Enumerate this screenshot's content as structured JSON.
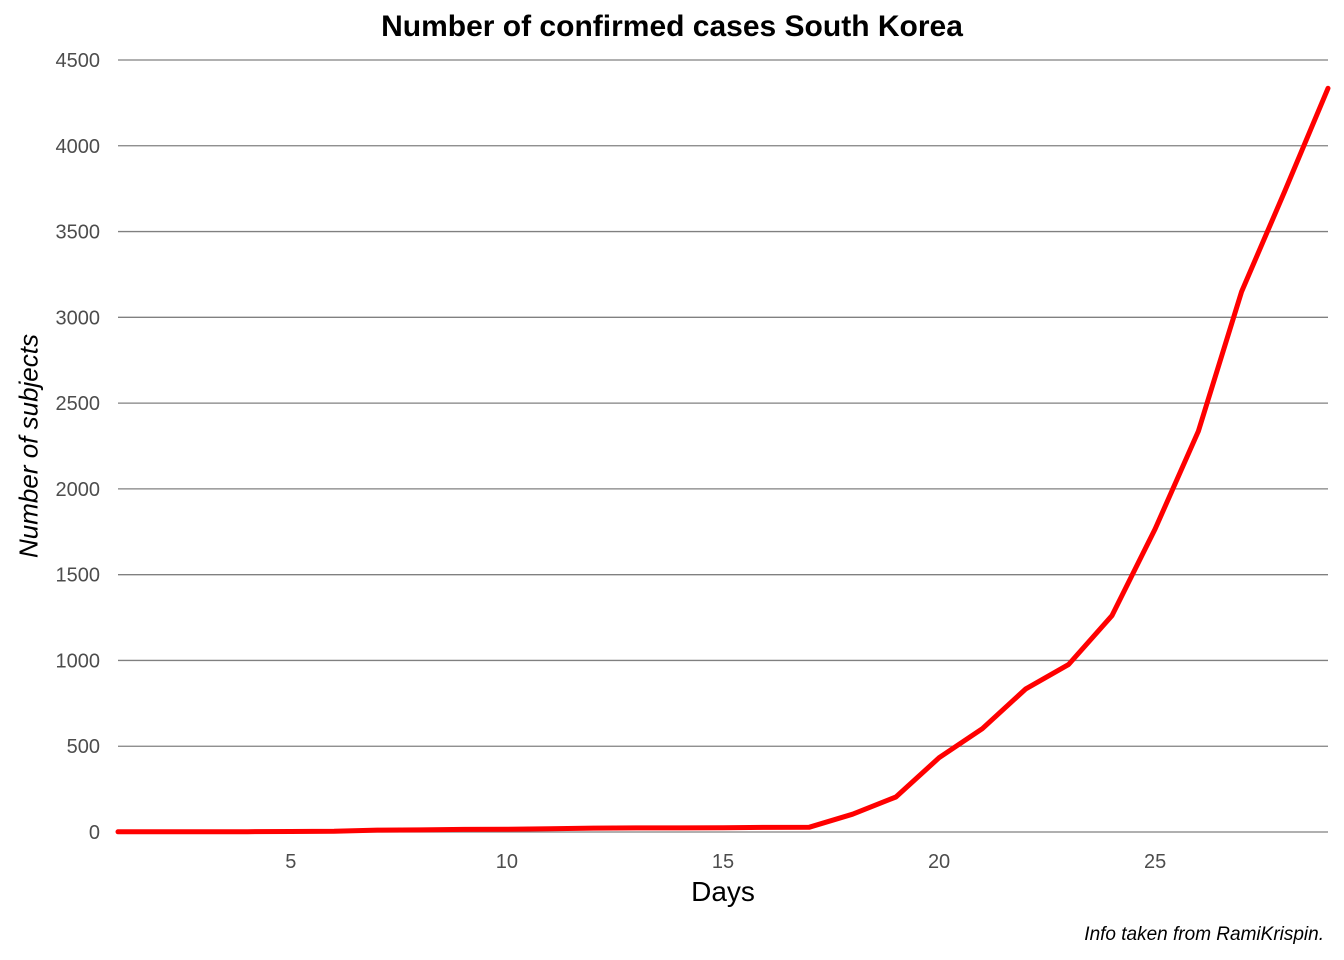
{
  "chart_data": {
    "type": "line",
    "title": "Number of confirmed cases South Korea",
    "xlabel": "Days",
    "ylabel": "Number of subjects",
    "caption": "Info taken from RamiKrispin.",
    "xlim": [
      1,
      29
    ],
    "ylim": [
      0,
      4500
    ],
    "x_ticks": [
      5,
      10,
      15,
      20,
      25
    ],
    "y_ticks": [
      0,
      500,
      1000,
      1500,
      2000,
      2500,
      3000,
      3500,
      4000,
      4500
    ],
    "grid": "horizontal",
    "series": [
      {
        "color": "#ff0000",
        "x": [
          1,
          2,
          3,
          4,
          5,
          6,
          7,
          8,
          9,
          10,
          11,
          12,
          13,
          14,
          15,
          16,
          17,
          18,
          19,
          20,
          21,
          22,
          23,
          24,
          25,
          26,
          27,
          28,
          29
        ],
        "y": [
          1,
          1,
          2,
          2,
          3,
          4,
          11,
          12,
          15,
          16,
          19,
          23,
          24,
          24,
          25,
          27,
          28,
          104,
          204,
          433,
          602,
          833,
          977,
          1261,
          1766,
          2337,
          3150,
          3736,
          4335
        ]
      }
    ]
  }
}
